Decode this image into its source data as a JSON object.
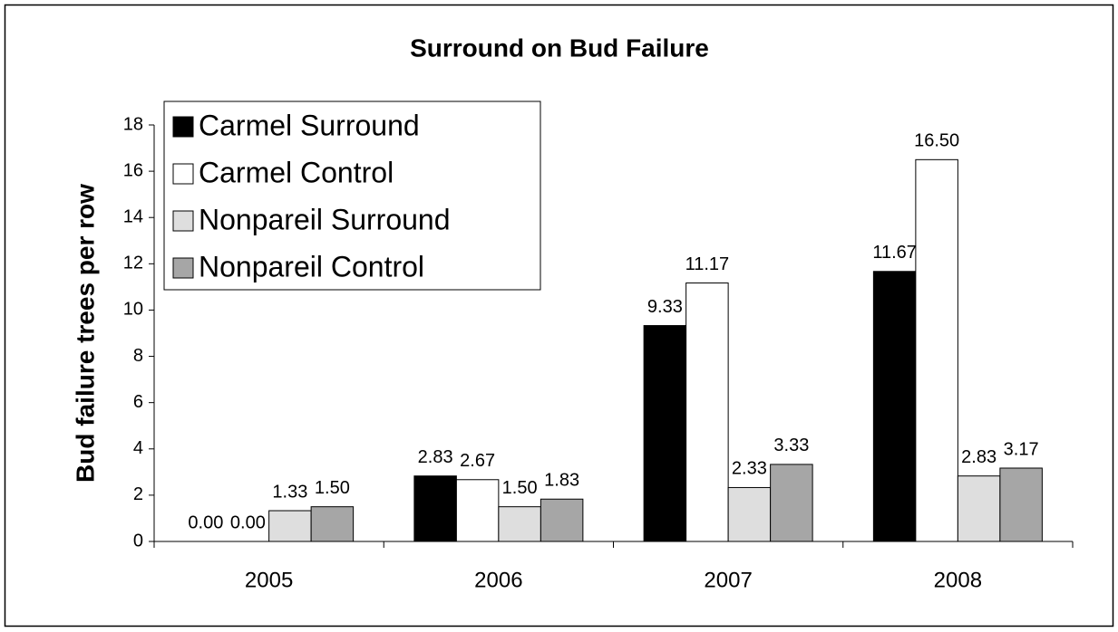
{
  "chart_data": {
    "type": "bar",
    "title": "Surround on Bud Failure",
    "y_label": "Bud failure trees per row",
    "categories": [
      "2005",
      "2006",
      "2007",
      "2008"
    ],
    "series": [
      {
        "name": "Carmel Surround",
        "color": "#000000",
        "values": [
          0,
          2.83,
          9.33,
          11.67
        ],
        "value_labels": [
          "0.00",
          "2.83",
          "9.33",
          "11.67"
        ]
      },
      {
        "name": "Carmel Control",
        "color": "#ffffff",
        "values": [
          0,
          2.67,
          11.17,
          16.5
        ],
        "value_labels": [
          "0.00",
          "2.67",
          "11.17",
          "16.50"
        ]
      },
      {
        "name": "Nonpareil Surround",
        "color": "#dedede",
        "values": [
          1.33,
          1.5,
          2.33,
          2.83
        ],
        "value_labels": [
          "1.33",
          "1.50",
          "2.33",
          "2.83"
        ]
      },
      {
        "name": "Nonpareil Control",
        "color": "#a6a6a6",
        "values": [
          1.5,
          1.83,
          3.33,
          3.17
        ],
        "value_labels": [
          "1.50",
          "1.83",
          "3.33",
          "3.17"
        ]
      }
    ],
    "ylim": [
      0,
      18
    ],
    "yticks": [
      0,
      2,
      4,
      6,
      8,
      10,
      12,
      14,
      16,
      18
    ],
    "legend": "upper left"
  }
}
